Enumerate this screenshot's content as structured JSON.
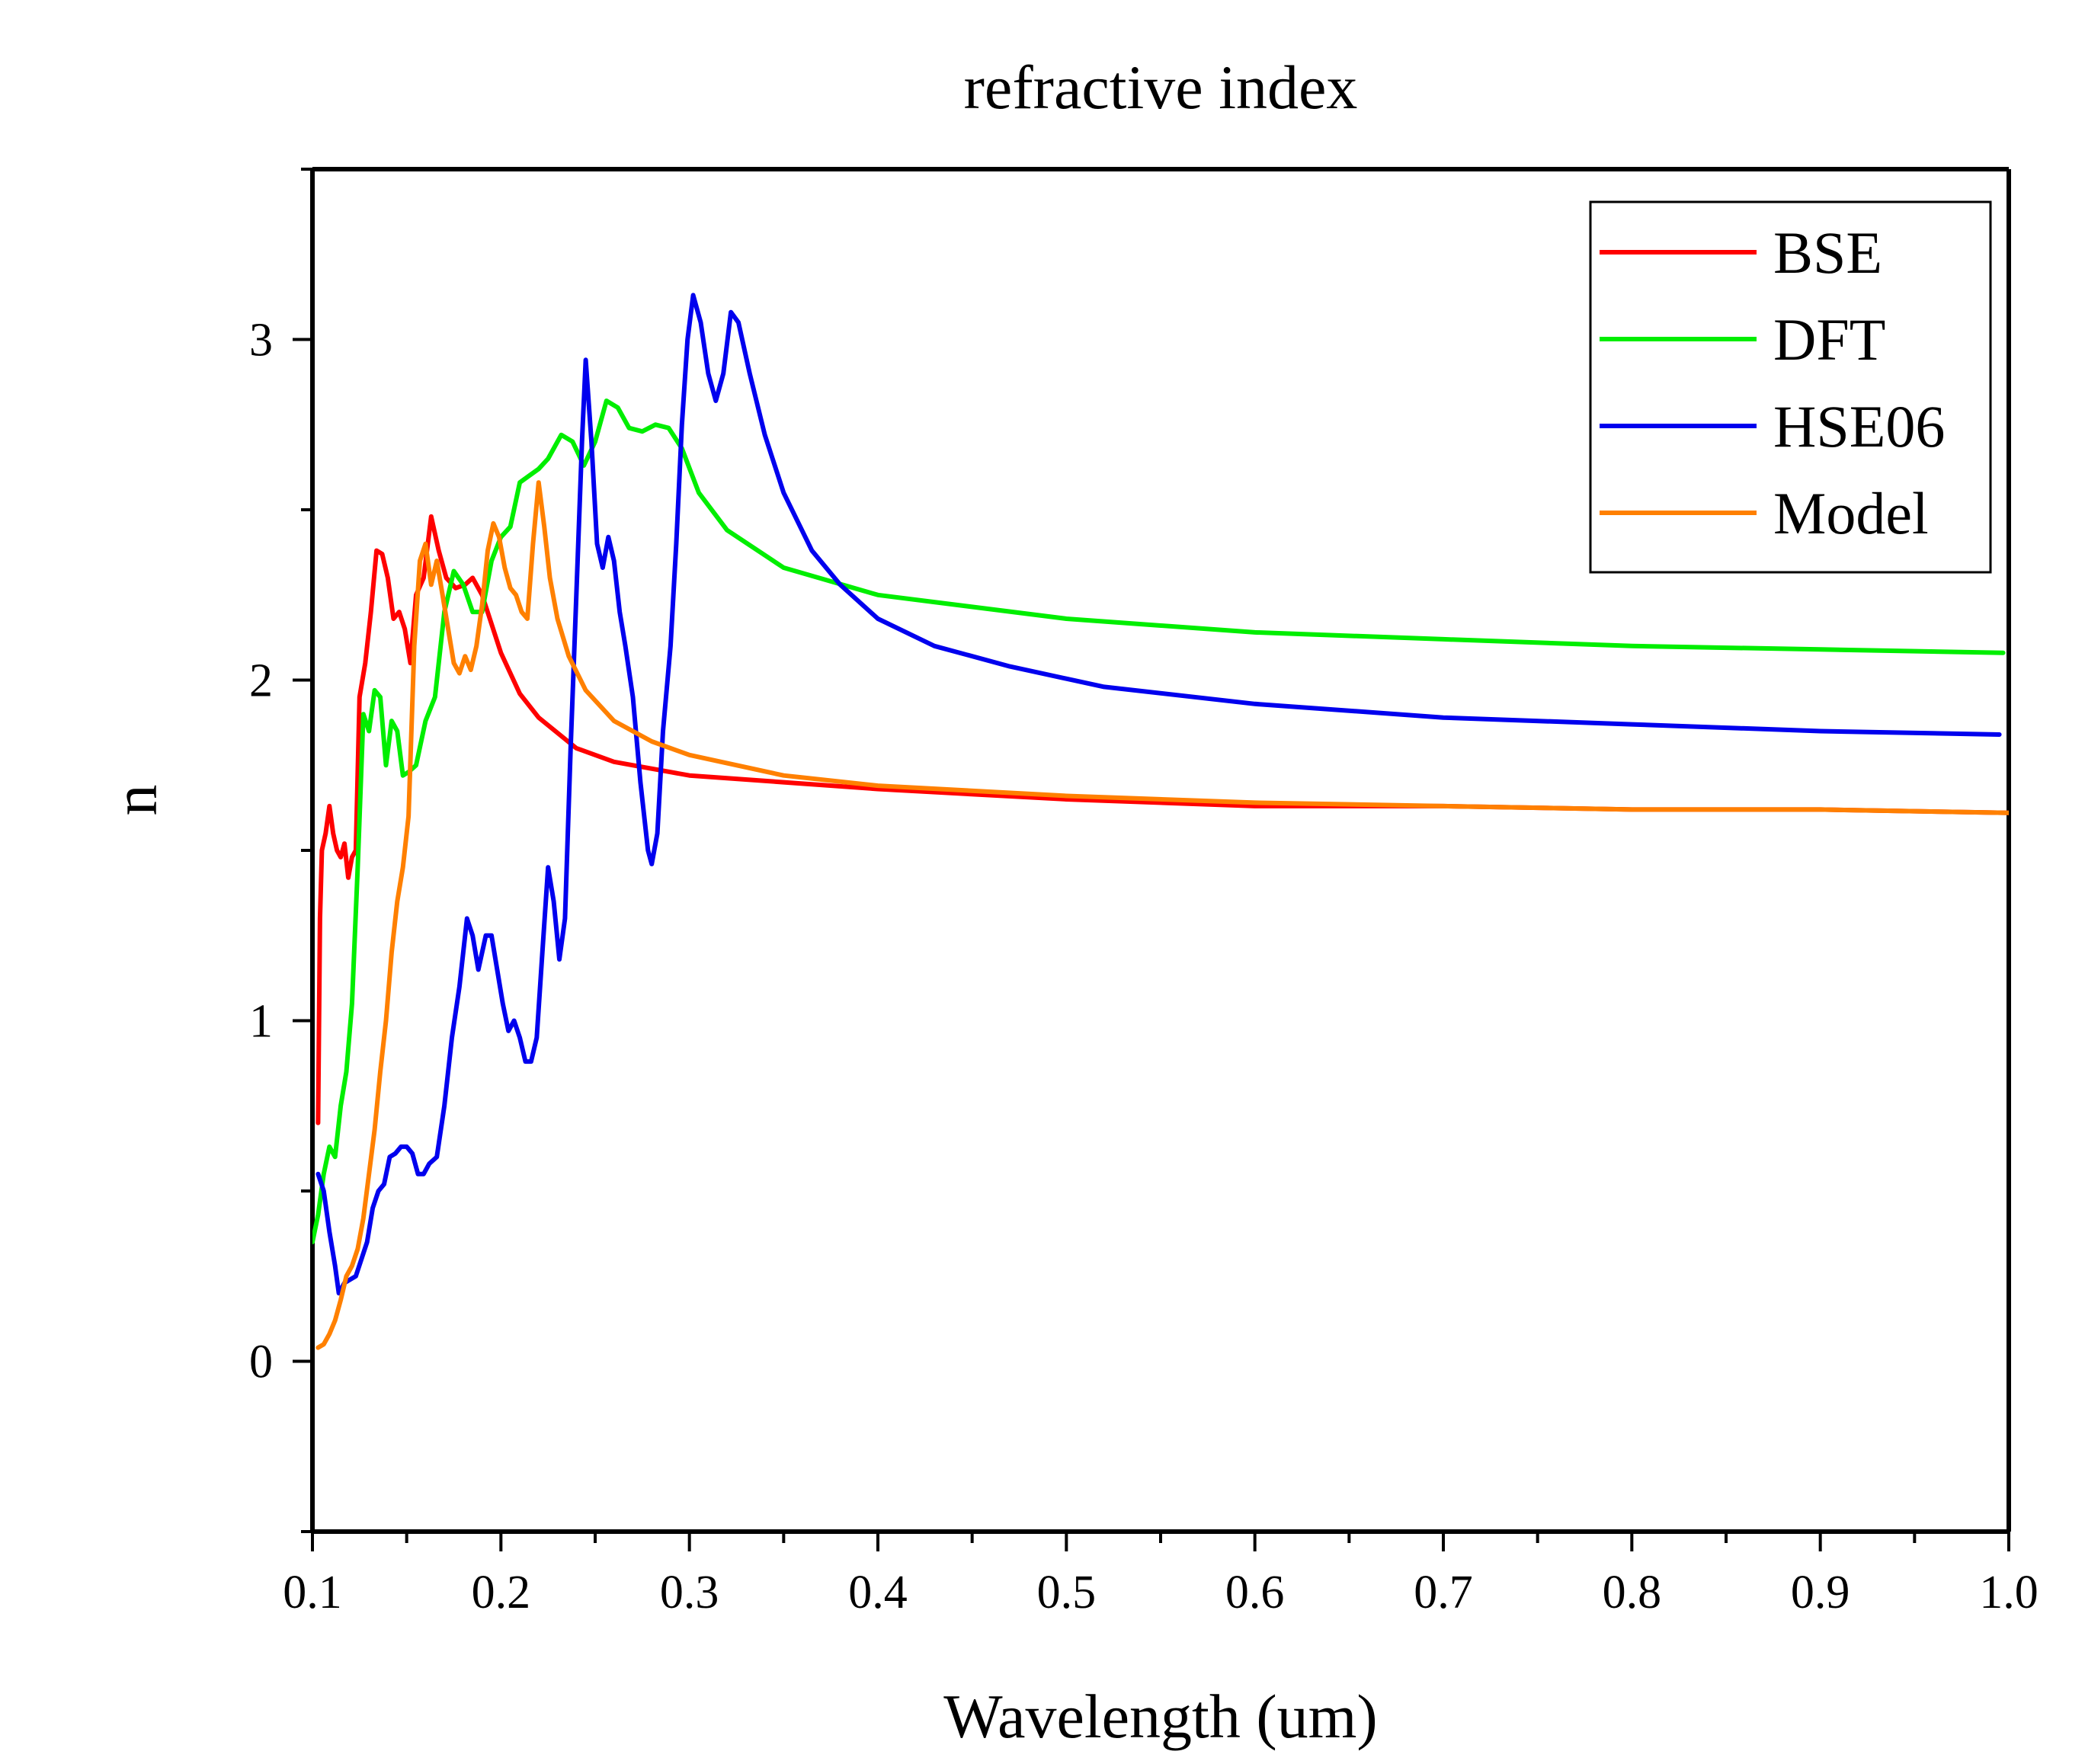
{
  "chart_data": {
    "type": "line",
    "title": "refractive index",
    "xlabel": "Wavelength (um)",
    "ylabel": "n",
    "xlim": [
      0.1,
      1.0
    ],
    "ylim": [
      -0.5,
      3.5
    ],
    "xticks": [
      "0.1",
      "0.2",
      "0.3",
      "0.4",
      "0.5",
      "0.6",
      "0.7",
      "0.8",
      "0.9",
      "1.0"
    ],
    "yticks": [
      "0",
      "1",
      "2",
      "3"
    ],
    "legend_position": "top-right",
    "series": [
      {
        "name": "BSE",
        "color": "#ff0000",
        "points": [
          [
            0.103,
            0.7
          ],
          [
            0.104,
            1.3
          ],
          [
            0.105,
            1.5
          ],
          [
            0.107,
            1.55
          ],
          [
            0.109,
            1.63
          ],
          [
            0.111,
            1.55
          ],
          [
            0.113,
            1.5
          ],
          [
            0.115,
            1.48
          ],
          [
            0.117,
            1.52
          ],
          [
            0.119,
            1.42
          ],
          [
            0.121,
            1.48
          ],
          [
            0.123,
            1.5
          ],
          [
            0.125,
            1.95
          ],
          [
            0.128,
            2.05
          ],
          [
            0.131,
            2.2
          ],
          [
            0.134,
            2.38
          ],
          [
            0.137,
            2.37
          ],
          [
            0.14,
            2.3
          ],
          [
            0.143,
            2.18
          ],
          [
            0.146,
            2.2
          ],
          [
            0.149,
            2.15
          ],
          [
            0.152,
            2.05
          ],
          [
            0.155,
            2.25
          ],
          [
            0.159,
            2.3
          ],
          [
            0.163,
            2.48
          ],
          [
            0.167,
            2.38
          ],
          [
            0.171,
            2.3
          ],
          [
            0.176,
            2.27
          ],
          [
            0.181,
            2.28
          ],
          [
            0.185,
            2.3
          ],
          [
            0.19,
            2.25
          ],
          [
            0.2,
            2.08
          ],
          [
            0.21,
            1.96
          ],
          [
            0.22,
            1.89
          ],
          [
            0.24,
            1.8
          ],
          [
            0.26,
            1.76
          ],
          [
            0.3,
            1.72
          ],
          [
            0.35,
            1.7
          ],
          [
            0.4,
            1.68
          ],
          [
            0.5,
            1.65
          ],
          [
            0.6,
            1.63
          ],
          [
            0.7,
            1.63
          ],
          [
            0.8,
            1.62
          ],
          [
            0.9,
            1.62
          ],
          [
            1.0,
            1.61
          ]
        ]
      },
      {
        "name": "DFT",
        "color": "#00ee00",
        "points": [
          [
            0.1,
            0.35
          ],
          [
            0.103,
            0.43
          ],
          [
            0.106,
            0.55
          ],
          [
            0.109,
            0.63
          ],
          [
            0.112,
            0.6
          ],
          [
            0.115,
            0.75
          ],
          [
            0.118,
            0.85
          ],
          [
            0.121,
            1.05
          ],
          [
            0.124,
            1.45
          ],
          [
            0.127,
            1.9
          ],
          [
            0.13,
            1.85
          ],
          [
            0.133,
            1.97
          ],
          [
            0.136,
            1.95
          ],
          [
            0.139,
            1.75
          ],
          [
            0.142,
            1.88
          ],
          [
            0.145,
            1.85
          ],
          [
            0.148,
            1.72
          ],
          [
            0.151,
            1.73
          ],
          [
            0.155,
            1.75
          ],
          [
            0.16,
            1.88
          ],
          [
            0.165,
            1.95
          ],
          [
            0.17,
            2.2
          ],
          [
            0.175,
            2.32
          ],
          [
            0.18,
            2.28
          ],
          [
            0.185,
            2.2
          ],
          [
            0.19,
            2.2
          ],
          [
            0.195,
            2.35
          ],
          [
            0.2,
            2.42
          ],
          [
            0.205,
            2.45
          ],
          [
            0.21,
            2.58
          ],
          [
            0.215,
            2.6
          ],
          [
            0.22,
            2.62
          ],
          [
            0.225,
            2.65
          ],
          [
            0.232,
            2.72
          ],
          [
            0.238,
            2.7
          ],
          [
            0.244,
            2.63
          ],
          [
            0.25,
            2.7
          ],
          [
            0.256,
            2.82
          ],
          [
            0.262,
            2.8
          ],
          [
            0.268,
            2.74
          ],
          [
            0.275,
            2.73
          ],
          [
            0.282,
            2.75
          ],
          [
            0.289,
            2.74
          ],
          [
            0.296,
            2.68
          ],
          [
            0.305,
            2.55
          ],
          [
            0.32,
            2.44
          ],
          [
            0.35,
            2.33
          ],
          [
            0.4,
            2.25
          ],
          [
            0.5,
            2.18
          ],
          [
            0.6,
            2.14
          ],
          [
            0.7,
            2.12
          ],
          [
            0.8,
            2.1
          ],
          [
            0.9,
            2.09
          ],
          [
            0.997,
            2.08
          ]
        ]
      },
      {
        "name": "HSE06",
        "color": "#0000ee",
        "points": [
          [
            0.103,
            0.55
          ],
          [
            0.106,
            0.5
          ],
          [
            0.109,
            0.38
          ],
          [
            0.112,
            0.28
          ],
          [
            0.114,
            0.2
          ],
          [
            0.117,
            0.23
          ],
          [
            0.12,
            0.24
          ],
          [
            0.123,
            0.25
          ],
          [
            0.126,
            0.3
          ],
          [
            0.129,
            0.35
          ],
          [
            0.132,
            0.45
          ],
          [
            0.135,
            0.5
          ],
          [
            0.138,
            0.52
          ],
          [
            0.141,
            0.6
          ],
          [
            0.144,
            0.61
          ],
          [
            0.147,
            0.63
          ],
          [
            0.15,
            0.63
          ],
          [
            0.153,
            0.61
          ],
          [
            0.156,
            0.55
          ],
          [
            0.159,
            0.55
          ],
          [
            0.162,
            0.58
          ],
          [
            0.166,
            0.6
          ],
          [
            0.17,
            0.75
          ],
          [
            0.174,
            0.95
          ],
          [
            0.178,
            1.1
          ],
          [
            0.182,
            1.3
          ],
          [
            0.185,
            1.25
          ],
          [
            0.188,
            1.15
          ],
          [
            0.192,
            1.25
          ],
          [
            0.195,
            1.25
          ],
          [
            0.198,
            1.15
          ],
          [
            0.201,
            1.05
          ],
          [
            0.204,
            0.97
          ],
          [
            0.207,
            1.0
          ],
          [
            0.21,
            0.95
          ],
          [
            0.213,
            0.88
          ],
          [
            0.216,
            0.88
          ],
          [
            0.219,
            0.95
          ],
          [
            0.222,
            1.2
          ],
          [
            0.225,
            1.45
          ],
          [
            0.228,
            1.35
          ],
          [
            0.231,
            1.18
          ],
          [
            0.234,
            1.3
          ],
          [
            0.237,
            1.8
          ],
          [
            0.24,
            2.25
          ],
          [
            0.243,
            2.7
          ],
          [
            0.245,
            2.94
          ],
          [
            0.248,
            2.7
          ],
          [
            0.251,
            2.4
          ],
          [
            0.254,
            2.33
          ],
          [
            0.257,
            2.42
          ],
          [
            0.26,
            2.35
          ],
          [
            0.263,
            2.2
          ],
          [
            0.266,
            2.1
          ],
          [
            0.27,
            1.95
          ],
          [
            0.274,
            1.7
          ],
          [
            0.278,
            1.5
          ],
          [
            0.28,
            1.46
          ],
          [
            0.283,
            1.55
          ],
          [
            0.286,
            1.85
          ],
          [
            0.29,
            2.1
          ],
          [
            0.293,
            2.4
          ],
          [
            0.296,
            2.75
          ],
          [
            0.299,
            3.0
          ],
          [
            0.302,
            3.13
          ],
          [
            0.306,
            3.05
          ],
          [
            0.31,
            2.9
          ],
          [
            0.314,
            2.82
          ],
          [
            0.318,
            2.9
          ],
          [
            0.322,
            3.08
          ],
          [
            0.326,
            3.05
          ],
          [
            0.332,
            2.9
          ],
          [
            0.34,
            2.72
          ],
          [
            0.35,
            2.55
          ],
          [
            0.365,
            2.38
          ],
          [
            0.38,
            2.28
          ],
          [
            0.4,
            2.18
          ],
          [
            0.43,
            2.1
          ],
          [
            0.47,
            2.04
          ],
          [
            0.52,
            1.98
          ],
          [
            0.6,
            1.93
          ],
          [
            0.7,
            1.89
          ],
          [
            0.8,
            1.87
          ],
          [
            0.9,
            1.85
          ],
          [
            0.995,
            1.84
          ]
        ]
      },
      {
        "name": "Model",
        "color": "#ff8000",
        "points": [
          [
            0.103,
            0.04
          ],
          [
            0.106,
            0.05
          ],
          [
            0.109,
            0.08
          ],
          [
            0.112,
            0.12
          ],
          [
            0.115,
            0.18
          ],
          [
            0.118,
            0.25
          ],
          [
            0.121,
            0.28
          ],
          [
            0.124,
            0.33
          ],
          [
            0.127,
            0.42
          ],
          [
            0.13,
            0.55
          ],
          [
            0.133,
            0.68
          ],
          [
            0.136,
            0.85
          ],
          [
            0.139,
            1.0
          ],
          [
            0.142,
            1.2
          ],
          [
            0.145,
            1.35
          ],
          [
            0.148,
            1.45
          ],
          [
            0.151,
            1.6
          ],
          [
            0.154,
            2.1
          ],
          [
            0.157,
            2.35
          ],
          [
            0.16,
            2.4
          ],
          [
            0.163,
            2.28
          ],
          [
            0.166,
            2.35
          ],
          [
            0.169,
            2.25
          ],
          [
            0.172,
            2.15
          ],
          [
            0.175,
            2.05
          ],
          [
            0.178,
            2.02
          ],
          [
            0.181,
            2.07
          ],
          [
            0.184,
            2.03
          ],
          [
            0.187,
            2.1
          ],
          [
            0.19,
            2.22
          ],
          [
            0.193,
            2.38
          ],
          [
            0.196,
            2.46
          ],
          [
            0.199,
            2.42
          ],
          [
            0.202,
            2.33
          ],
          [
            0.205,
            2.27
          ],
          [
            0.208,
            2.25
          ],
          [
            0.211,
            2.2
          ],
          [
            0.214,
            2.18
          ],
          [
            0.217,
            2.4
          ],
          [
            0.22,
            2.58
          ],
          [
            0.223,
            2.45
          ],
          [
            0.226,
            2.3
          ],
          [
            0.23,
            2.18
          ],
          [
            0.236,
            2.07
          ],
          [
            0.245,
            1.97
          ],
          [
            0.26,
            1.88
          ],
          [
            0.28,
            1.82
          ],
          [
            0.3,
            1.78
          ],
          [
            0.35,
            1.72
          ],
          [
            0.4,
            1.69
          ],
          [
            0.5,
            1.66
          ],
          [
            0.6,
            1.64
          ],
          [
            0.7,
            1.63
          ],
          [
            0.8,
            1.62
          ],
          [
            0.9,
            1.62
          ],
          [
            1.0,
            1.61
          ]
        ]
      }
    ]
  }
}
